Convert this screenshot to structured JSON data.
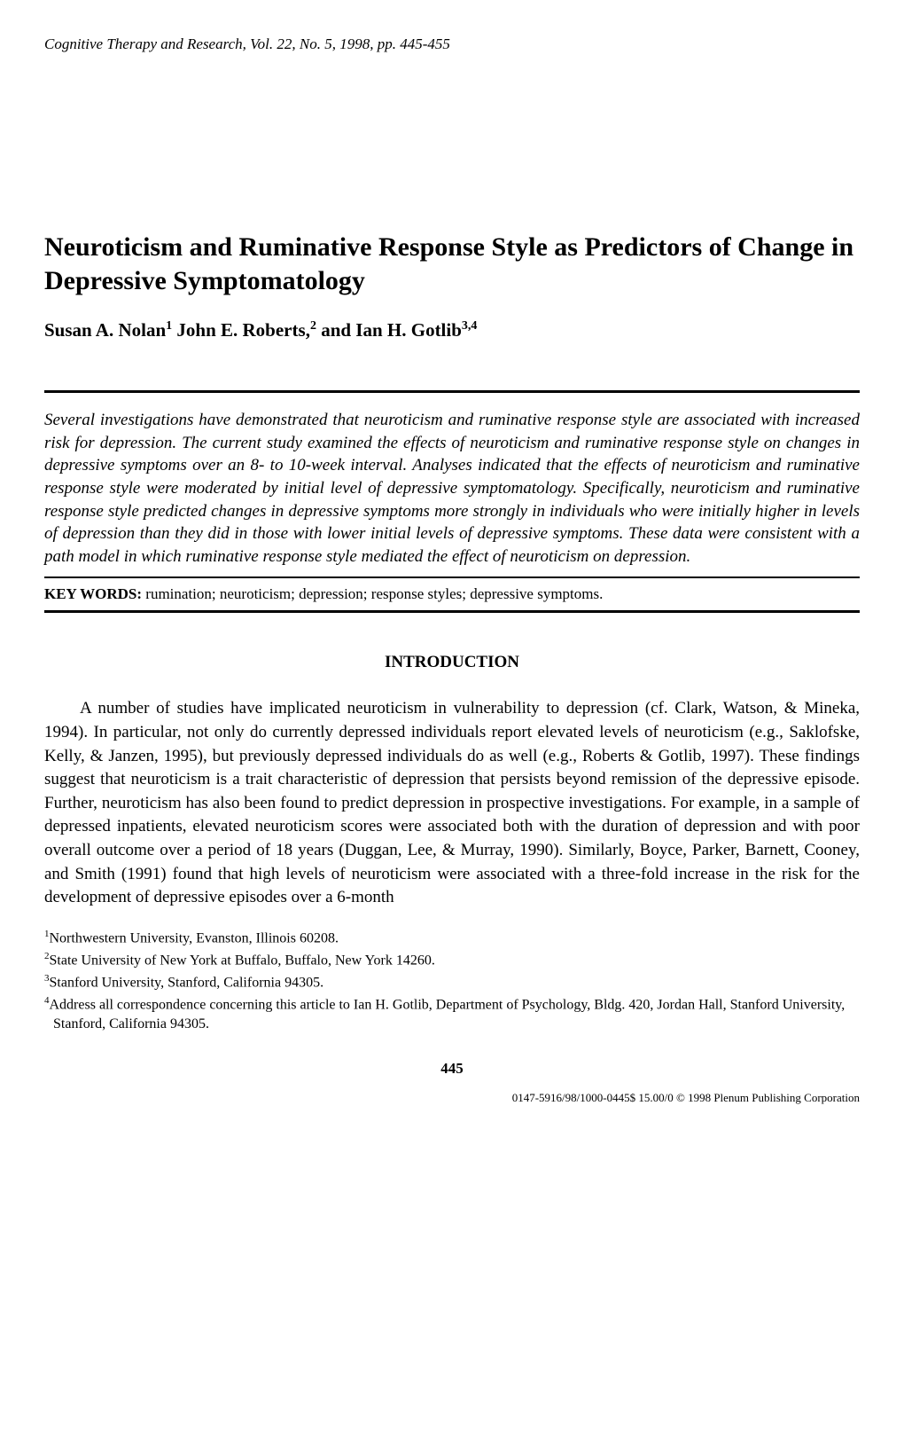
{
  "journal": {
    "name": "Cognitive Therapy and Research",
    "volume": "Vol. 22",
    "issue": "No. 5",
    "year": "1998",
    "pages": "pp. 445-455"
  },
  "title": "Neuroticism and Ruminative Response Style as Predictors of Change in Depressive Symptomatology",
  "authors": [
    {
      "name": "Susan A. Nolan",
      "affil": "1"
    },
    {
      "name": "John E. Roberts",
      "affil": "2"
    },
    {
      "name": "Ian H. Gotlib",
      "affil": "3,4"
    }
  ],
  "abstract": "Several investigations have demonstrated that neuroticism and ruminative response style are associated with increased risk for depression. The current study examined the effects of neuroticism and ruminative response style on changes in depressive symptoms over an 8- to 10-week interval. Analyses indicated that the effects of neuroticism and ruminative response style were moderated by initial level of depressive symptomatology. Specifically, neuroticism and ruminative response style predicted changes in depressive symptoms more strongly in individuals who were initially higher in levels of depression than they did in those with lower initial levels of depressive symptoms. These data were consistent with a path model in which ruminative response style mediated the effect of neuroticism on depression.",
  "keywords": {
    "label": "KEY WORDS:",
    "text": "rumination; neuroticism; depression; response styles; depressive symptoms."
  },
  "sections": {
    "introduction": {
      "heading": "INTRODUCTION",
      "paragraph1": "A number of studies have implicated neuroticism in vulnerability to depression (cf. Clark, Watson, & Mineka, 1994). In particular, not only do currently depressed individuals report elevated levels of neuroticism (e.g., Saklofske, Kelly, & Janzen, 1995), but previously depressed individuals do as well (e.g., Roberts & Gotlib, 1997). These findings suggest that neuroticism is a trait characteristic of depression that persists beyond remission of the depressive episode. Further, neuroticism has also been found to predict depression in prospective investigations. For example, in a sample of depressed inpatients, elevated neuroticism scores were associated both with the duration of depression and with poor overall outcome over a period of 18 years (Duggan, Lee, & Murray, 1990). Similarly, Boyce, Parker, Barnett, Cooney, and Smith (1991) found that high levels of neuroticism were associated with a three-fold increase in the risk for the development of depressive episodes over a 6-month"
    }
  },
  "footnotes": [
    {
      "num": "1",
      "text": "Northwestern University, Evanston, Illinois 60208."
    },
    {
      "num": "2",
      "text": "State University of New York at Buffalo, Buffalo, New York 14260."
    },
    {
      "num": "3",
      "text": "Stanford University, Stanford, California 94305."
    },
    {
      "num": "4",
      "text": "Address all correspondence concerning this article to Ian H. Gotlib, Department of Psychology, Bldg. 420, Jordan Hall, Stanford University, Stanford, California 94305."
    }
  ],
  "page_number": "445",
  "copyright": "0147-5916/98/1000-0445$ 15.00/0 © 1998 Plenum Publishing Corporation"
}
